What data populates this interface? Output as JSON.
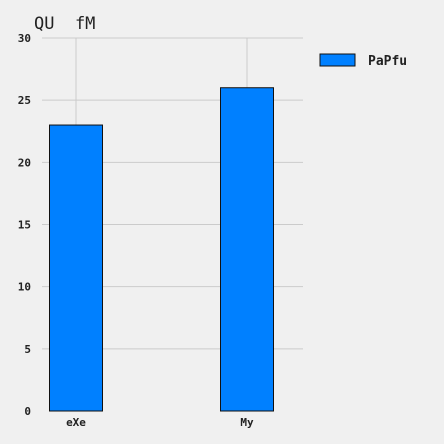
{
  "chart_data": {
    "type": "bar",
    "title": "QU  fM",
    "xlabel": "",
    "ylabel": "",
    "categories": [
      "eXe",
      "My"
    ],
    "series": [
      {
        "name": "PaPfu",
        "values": [
          23,
          26
        ]
      }
    ],
    "ylim": [
      0,
      30
    ],
    "yticks": [
      "0",
      "5",
      "10",
      "15",
      "20",
      "25",
      "30"
    ],
    "grid": true,
    "legend_position": "top-right",
    "colors": {
      "bar_fill": "#0080ff",
      "bar_stroke": "#111111",
      "grid": "#cbcbcb",
      "background": "#f0f0f0"
    }
  }
}
